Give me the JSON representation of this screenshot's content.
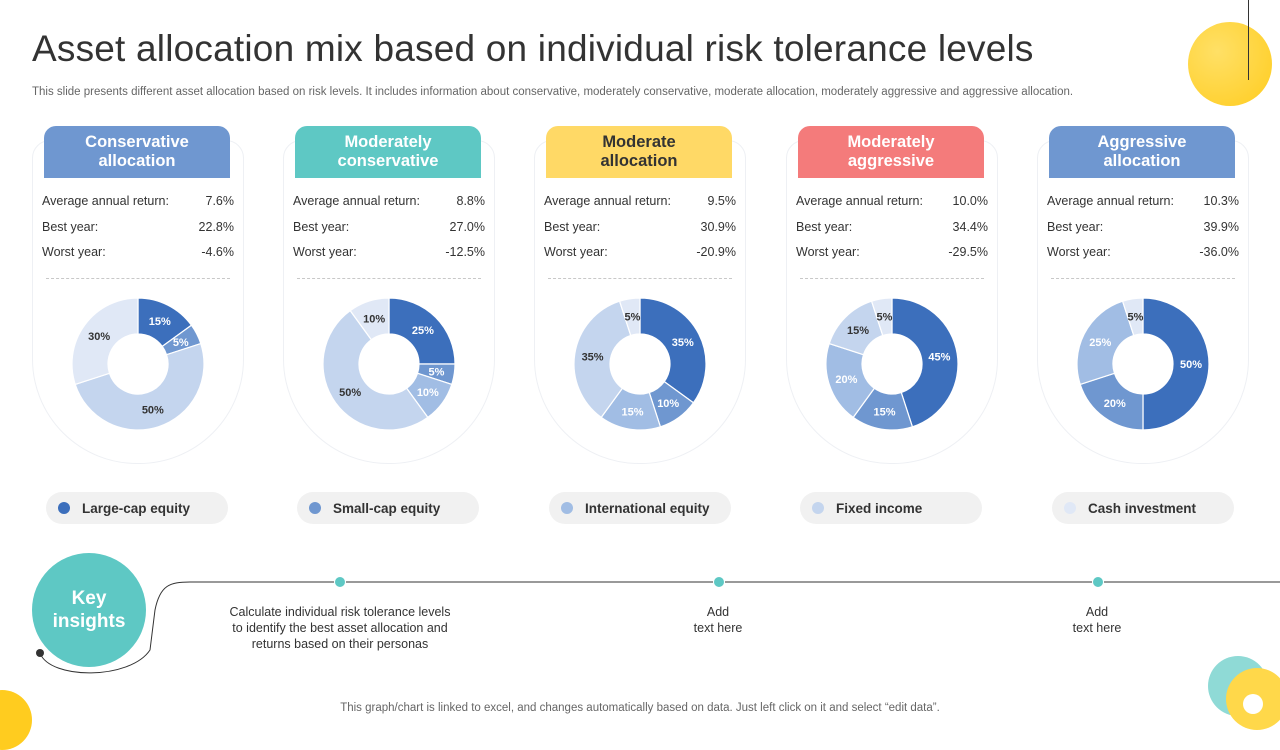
{
  "title": "Asset allocation mix based on individual risk tolerance levels",
  "subtitle": "This slide presents different asset allocation based on risk levels. It includes information about conservative, moderately conservative, moderate allocation, moderately aggressive and aggressive allocation.",
  "stat_labels": {
    "avg": "Average  annual  return:",
    "best": "Best year:",
    "worst": "Worst year:"
  },
  "colors": {
    "large_cap": "#3c6fbc",
    "small_cap": "#6f97d0",
    "international": "#a1bde4",
    "fixed_income": "#c4d5ee",
    "cash": "#e0e8f6",
    "tab_conservative": "#6f97d0",
    "tab_mod_conservative": "#5ec8c4",
    "tab_moderate": "#ffd966",
    "tab_mod_aggressive": "#f47b7b",
    "tab_aggressive": "#6f97d0",
    "accent": "#5ec8c4"
  },
  "chart_data": [
    {
      "type": "pie",
      "title": "Conservative\nallocation",
      "avg": "7.6%",
      "best": "22.8%",
      "worst": "-4.6%",
      "categories": [
        "Large-cap equity",
        "Small-cap equity",
        "International equity",
        "Fixed income",
        "Cash investment"
      ],
      "values": [
        15,
        5,
        0,
        50,
        30
      ],
      "labels": [
        "15%",
        "5%",
        "",
        "50%",
        "30%"
      ]
    },
    {
      "type": "pie",
      "title": "Moderately\nconservative",
      "avg": "8.8%",
      "best": "27.0%",
      "worst": "-12.5%",
      "categories": [
        "Large-cap equity",
        "Small-cap equity",
        "International equity",
        "Fixed income",
        "Cash investment"
      ],
      "values": [
        25,
        5,
        10,
        50,
        10
      ],
      "labels": [
        "25%",
        "5%",
        "10%",
        "50%",
        "10%"
      ]
    },
    {
      "type": "pie",
      "title": "Moderate\nallocation",
      "avg": "9.5%",
      "best": "30.9%",
      "worst": "-20.9%",
      "categories": [
        "Large-cap equity",
        "Small-cap equity",
        "International equity",
        "Fixed income",
        "Cash investment"
      ],
      "values": [
        35,
        10,
        15,
        35,
        5
      ],
      "labels": [
        "35%",
        "10%",
        "15%",
        "35%",
        "5%"
      ]
    },
    {
      "type": "pie",
      "title": "Moderately\naggressive",
      "avg": "10.0%",
      "best": "34.4%",
      "worst": "-29.5%",
      "categories": [
        "Large-cap equity",
        "Small-cap equity",
        "International equity",
        "Fixed income",
        "Cash investment"
      ],
      "values": [
        45,
        15,
        20,
        15,
        5
      ],
      "labels": [
        "45%",
        "15%",
        "20%",
        "15%",
        "5%"
      ]
    },
    {
      "type": "pie",
      "title": "Aggressive\nallocation",
      "avg": "10.3%",
      "best": "39.9%",
      "worst": "-36.0%",
      "categories": [
        "Large-cap equity",
        "Small-cap equity",
        "International equity",
        "Fixed income",
        "Cash investment"
      ],
      "values": [
        50,
        20,
        25,
        0,
        5
      ],
      "labels": [
        "50%",
        "20%",
        "25%",
        "",
        "5%"
      ]
    }
  ],
  "legend": [
    "Large-cap equity",
    "Small-cap equity",
    "International equity",
    "Fixed income",
    "Cash investment"
  ],
  "key_insights": {
    "title": "Key\ninsights",
    "items": [
      "Calculate individual  risk tolerance levels\nto identify the best asset allocation and\nreturns based on their personas",
      "Add\ntext here",
      "Add\ntext here"
    ]
  },
  "footer": "This graph/chart is linked to excel,  and changes automatically based on data. Just left click on it and select “edit data”."
}
